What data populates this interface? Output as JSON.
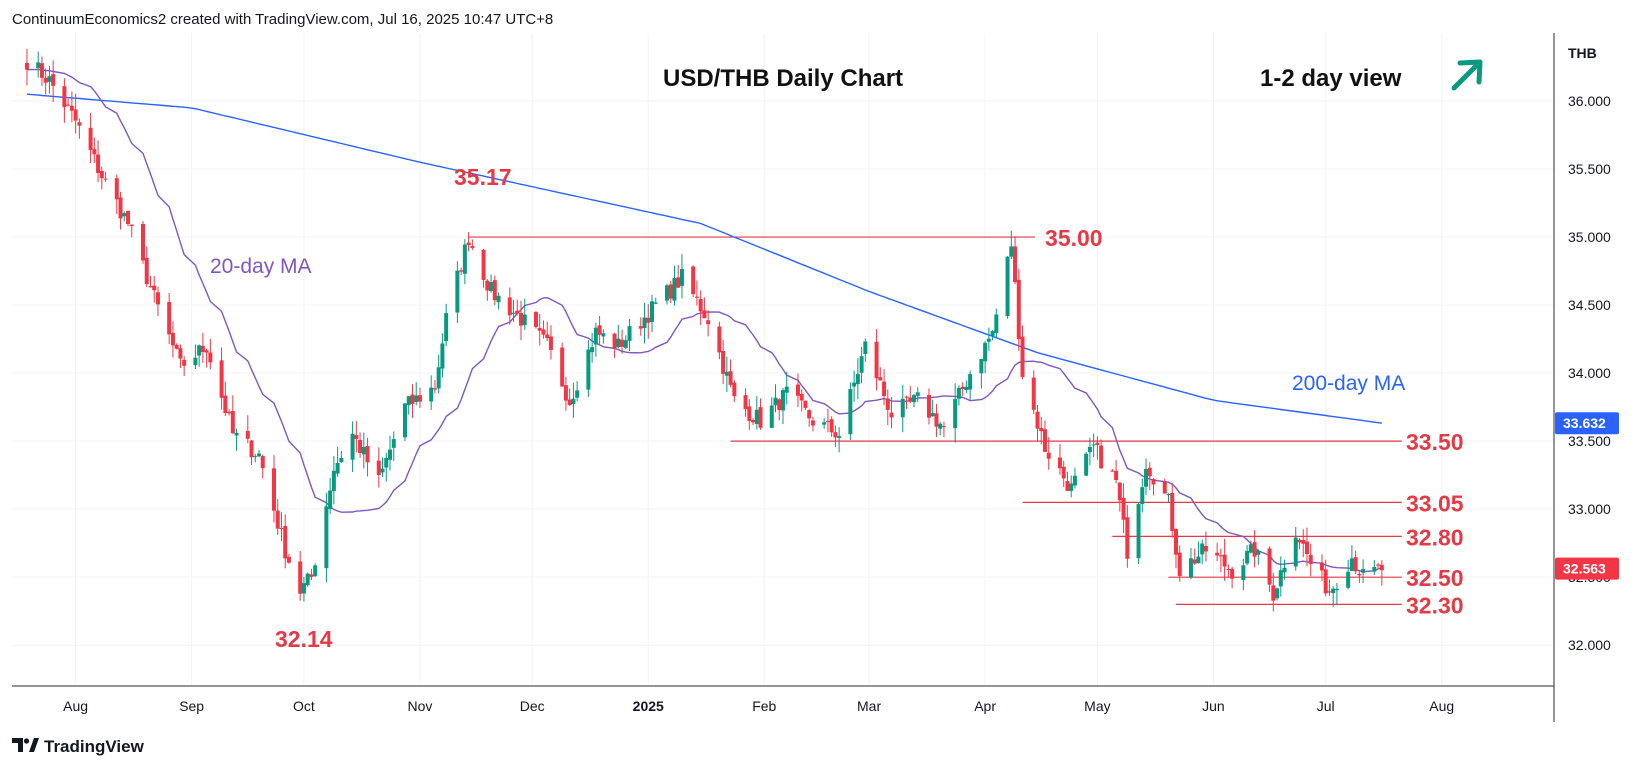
{
  "attribution": "ContinuumEconomics2 created with TradingView.com, Jul 16, 2025 10:47 UTC+8",
  "footer_logo": "TradingView",
  "currency_label": "THB",
  "colors": {
    "up": "#089981",
    "down": "#f23645",
    "ma20": "#7e57c2",
    "ma200": "#2962ff",
    "level": "#e53945",
    "badge_last": "#f23645",
    "badge_ma200": "#2962ff",
    "arrow": "#089981"
  },
  "chart_data": {
    "type": "candlestick",
    "title": "USD/THB Daily Chart",
    "view_label": "1-2 day view",
    "view_icon": "arrow-up-right-icon",
    "y_range": [
      31.7,
      36.5
    ],
    "y_ticks": [
      "36.000",
      "35.500",
      "35.000",
      "34.500",
      "34.000",
      "33.500",
      "33.000",
      "32.500",
      "32.000"
    ],
    "x_ticks": [
      "Aug",
      "Sep",
      "Oct",
      "Nov",
      "Dec",
      "2025",
      "Feb",
      "Mar",
      "Apr",
      "May",
      "Jun",
      "Jul",
      "Aug"
    ],
    "last_price": "32.563",
    "ma200_value": "33.632",
    "ma_labels": {
      "ma20": "20-day MA",
      "ma200": "200-day MA"
    },
    "annotations": {
      "low_oct": "32.14",
      "high_nov": "35.17"
    },
    "levels": [
      {
        "label": "35.00",
        "value": 35.0,
        "from_date": "2024-11-14",
        "to_date": "2025-04-09"
      },
      {
        "label": "33.50",
        "value": 33.5,
        "from_date": "2025-01-23",
        "to_date": "2025-07-16"
      },
      {
        "label": "33.05",
        "value": 33.05,
        "from_date": "2025-04-11",
        "to_date": "2025-07-16"
      },
      {
        "label": "32.80",
        "value": 32.8,
        "from_date": "2025-05-05",
        "to_date": "2025-07-16"
      },
      {
        "label": "32.50",
        "value": 32.5,
        "from_date": "2025-05-20",
        "to_date": "2025-07-16"
      },
      {
        "label": "32.30",
        "value": 32.3,
        "from_date": "2025-05-22",
        "to_date": "2025-07-16"
      }
    ],
    "key_points": [
      {
        "date": "2024-07-19",
        "price": 36.3
      },
      {
        "date": "2024-07-25",
        "price": 36.15
      },
      {
        "date": "2024-08-01",
        "price": 35.85
      },
      {
        "date": "2024-08-08",
        "price": 35.45
      },
      {
        "date": "2024-08-15",
        "price": 35.1
      },
      {
        "date": "2024-08-22",
        "price": 34.55
      },
      {
        "date": "2024-08-29",
        "price": 34.05
      },
      {
        "date": "2024-09-05",
        "price": 34.2
      },
      {
        "date": "2024-09-12",
        "price": 33.55
      },
      {
        "date": "2024-09-19",
        "price": 33.4
      },
      {
        "date": "2024-09-26",
        "price": 32.7
      },
      {
        "date": "2024-09-30",
        "price": 32.4
      },
      {
        "date": "2024-10-03",
        "price": 32.5
      },
      {
        "date": "2024-10-09",
        "price": 33.3
      },
      {
        "date": "2024-10-14",
        "price": 33.55
      },
      {
        "date": "2024-10-21",
        "price": 33.2
      },
      {
        "date": "2024-10-28",
        "price": 33.75
      },
      {
        "date": "2024-11-05",
        "price": 33.9
      },
      {
        "date": "2024-11-08",
        "price": 34.4
      },
      {
        "date": "2024-11-14",
        "price": 35.0
      },
      {
        "date": "2024-11-20",
        "price": 34.6
      },
      {
        "date": "2024-11-28",
        "price": 34.4
      },
      {
        "date": "2024-12-05",
        "price": 34.2
      },
      {
        "date": "2024-12-11",
        "price": 33.8
      },
      {
        "date": "2024-12-18",
        "price": 34.3
      },
      {
        "date": "2024-12-24",
        "price": 34.2
      },
      {
        "date": "2025-01-03",
        "price": 34.5
      },
      {
        "date": "2025-01-10",
        "price": 34.7
      },
      {
        "date": "2025-01-17",
        "price": 34.4
      },
      {
        "date": "2025-01-24",
        "price": 33.8
      },
      {
        "date": "2025-01-31",
        "price": 33.65
      },
      {
        "date": "2025-02-07",
        "price": 33.85
      },
      {
        "date": "2025-02-14",
        "price": 33.65
      },
      {
        "date": "2025-02-21",
        "price": 33.55
      },
      {
        "date": "2025-02-28",
        "price": 34.2
      },
      {
        "date": "2025-03-07",
        "price": 33.7
      },
      {
        "date": "2025-03-14",
        "price": 33.8
      },
      {
        "date": "2025-03-21",
        "price": 33.6
      },
      {
        "date": "2025-03-28",
        "price": 34.0
      },
      {
        "date": "2025-04-03",
        "price": 34.3
      },
      {
        "date": "2025-04-08",
        "price": 34.95
      },
      {
        "date": "2025-04-11",
        "price": 34.0
      },
      {
        "date": "2025-04-17",
        "price": 33.45
      },
      {
        "date": "2025-04-24",
        "price": 33.15
      },
      {
        "date": "2025-04-30",
        "price": 33.45
      },
      {
        "date": "2025-05-06",
        "price": 33.2
      },
      {
        "date": "2025-05-09",
        "price": 32.7
      },
      {
        "date": "2025-05-14",
        "price": 33.35
      },
      {
        "date": "2025-05-20",
        "price": 33.05
      },
      {
        "date": "2025-05-23",
        "price": 32.55
      },
      {
        "date": "2025-05-30",
        "price": 32.7
      },
      {
        "date": "2025-06-06",
        "price": 32.55
      },
      {
        "date": "2025-06-12",
        "price": 32.7
      },
      {
        "date": "2025-06-17",
        "price": 32.38
      },
      {
        "date": "2025-06-23",
        "price": 32.85
      },
      {
        "date": "2025-06-27",
        "price": 32.6
      },
      {
        "date": "2025-07-02",
        "price": 32.4
      },
      {
        "date": "2025-07-08",
        "price": 32.65
      },
      {
        "date": "2025-07-11",
        "price": 32.5
      },
      {
        "date": "2025-07-16",
        "price": 32.56
      }
    ]
  }
}
